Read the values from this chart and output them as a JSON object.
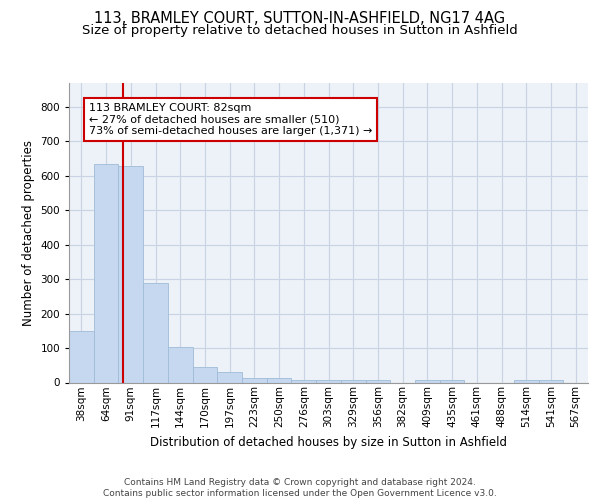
{
  "title_line1": "113, BRAMLEY COURT, SUTTON-IN-ASHFIELD, NG17 4AG",
  "title_line2": "Size of property relative to detached houses in Sutton in Ashfield",
  "xlabel": "Distribution of detached houses by size in Sutton in Ashfield",
  "ylabel": "Number of detached properties",
  "footer_line1": "Contains HM Land Registry data © Crown copyright and database right 2024.",
  "footer_line2": "Contains public sector information licensed under the Open Government Licence v3.0.",
  "categories": [
    "38sqm",
    "64sqm",
    "91sqm",
    "117sqm",
    "144sqm",
    "170sqm",
    "197sqm",
    "223sqm",
    "250sqm",
    "276sqm",
    "303sqm",
    "329sqm",
    "356sqm",
    "382sqm",
    "409sqm",
    "435sqm",
    "461sqm",
    "488sqm",
    "514sqm",
    "541sqm",
    "567sqm"
  ],
  "values": [
    150,
    635,
    628,
    288,
    103,
    46,
    30,
    12,
    12,
    8,
    8,
    8,
    8,
    0,
    8,
    8,
    0,
    0,
    8,
    8,
    0
  ],
  "bar_color": "#c5d8f0",
  "bar_edge_color": "#a0bcd8",
  "bar_width": 1.0,
  "vline_color": "#cc0000",
  "annotation_text": "113 BRAMLEY COURT: 82sqm\n← 27% of detached houses are smaller (510)\n73% of semi-detached houses are larger (1,371) →",
  "annotation_box_color": "white",
  "annotation_box_edge_color": "#cc0000",
  "ylim": [
    0,
    870
  ],
  "yticks": [
    0,
    100,
    200,
    300,
    400,
    500,
    600,
    700,
    800
  ],
  "grid_color": "#c8d4e4",
  "bg_color": "#edf1f8",
  "title_fontsize": 10.5,
  "subtitle_fontsize": 9.5,
  "tick_fontsize": 7.5,
  "ylabel_fontsize": 8.5,
  "xlabel_fontsize": 8.5,
  "footer_fontsize": 6.5,
  "annotation_fontsize": 8
}
